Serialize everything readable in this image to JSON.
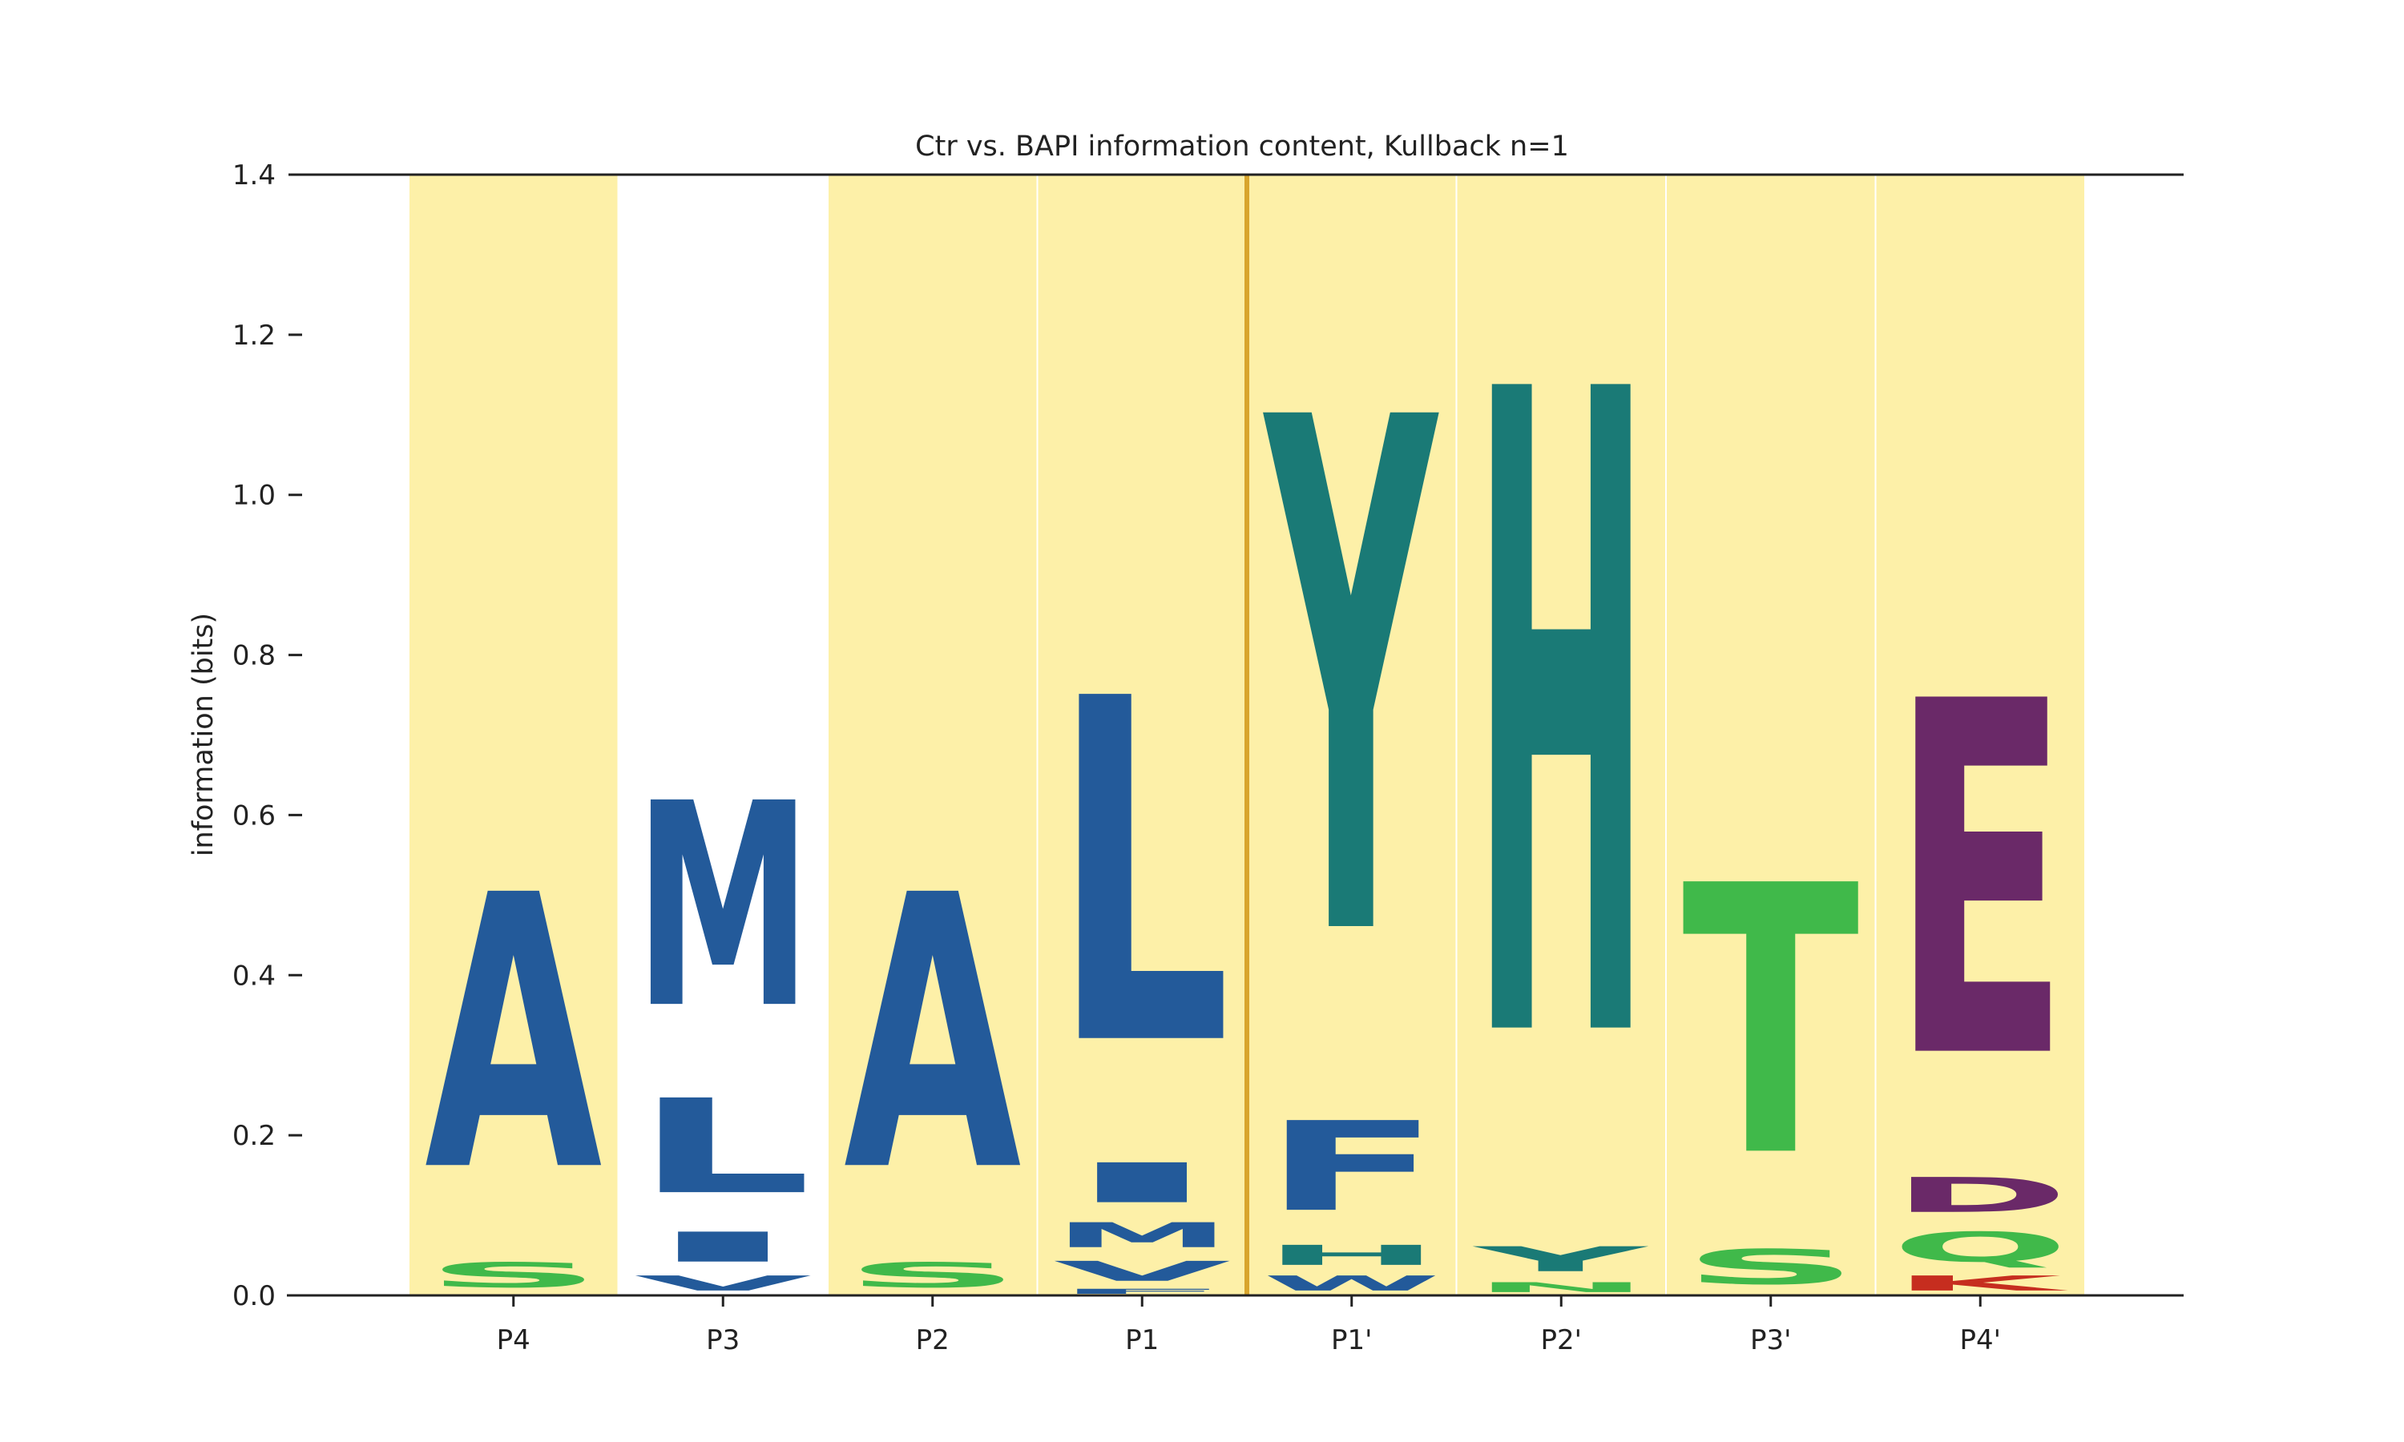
{
  "chart_data": {
    "type": "sequence-logo",
    "title": "Ctr vs. BAPI information content, Kullback n=1",
    "xlabel": "",
    "ylabel": "information (bits)",
    "ylim": [
      0,
      1.4
    ],
    "yticks": [
      0.0,
      0.2,
      0.4,
      0.6,
      0.8,
      1.0,
      1.2,
      1.4
    ],
    "ytick_labels": [
      "0.0",
      "0.2",
      "0.4",
      "0.6",
      "0.8",
      "1.0",
      "1.2",
      "1.4"
    ],
    "categories": [
      "P4",
      "P3",
      "P2",
      "P1",
      "P1'",
      "P2'",
      "P3'",
      "P4'"
    ],
    "highlighted_positions": [
      "P4",
      "P2",
      "P1",
      "P1'",
      "P2'",
      "P3'",
      "P4'"
    ],
    "cleavage_site_between": [
      "P1",
      "P1'"
    ],
    "grid": false,
    "colors": {
      "blue": "#235a9a",
      "teal": "#1a7a76",
      "green": "#40b94a",
      "purple": "#6a2968",
      "red": "#c62d1f",
      "highlight": "#fdf0a8",
      "cleavage_line": "#d8a52d"
    },
    "stacks": [
      {
        "position": "P4",
        "letters": [
          {
            "letter": "S",
            "bits": 0.05,
            "color": "green"
          },
          {
            "letter": "A",
            "bits": 0.55,
            "color": "blue"
          }
        ]
      },
      {
        "position": "P3",
        "letters": [
          {
            "letter": "V",
            "bits": 0.03,
            "color": "blue"
          },
          {
            "letter": "I",
            "bits": 0.06,
            "color": "blue"
          },
          {
            "letter": "L",
            "bits": 0.19,
            "color": "blue"
          },
          {
            "letter": "M",
            "bits": 0.41,
            "color": "blue"
          }
        ]
      },
      {
        "position": "P2",
        "letters": [
          {
            "letter": "S",
            "bits": 0.05,
            "color": "green"
          },
          {
            "letter": "A",
            "bits": 0.55,
            "color": "blue"
          }
        ]
      },
      {
        "position": "P1",
        "letters": [
          {
            "letter": "F",
            "bits": 0.01,
            "color": "blue"
          },
          {
            "letter": "V",
            "bits": 0.04,
            "color": "blue"
          },
          {
            "letter": "M",
            "bits": 0.05,
            "color": "blue"
          },
          {
            "letter": "I",
            "bits": 0.08,
            "color": "blue"
          },
          {
            "letter": "L",
            "bits": 0.69,
            "color": "blue"
          }
        ]
      },
      {
        "position": "P1'",
        "letters": [
          {
            "letter": "W",
            "bits": 0.03,
            "color": "blue"
          },
          {
            "letter": "H",
            "bits": 0.04,
            "color": "teal"
          },
          {
            "letter": "F",
            "bits": 0.18,
            "color": "blue"
          },
          {
            "letter": "Y",
            "bits": 1.03,
            "color": "teal"
          }
        ]
      },
      {
        "position": "P2'",
        "letters": [
          {
            "letter": "N",
            "bits": 0.02,
            "color": "green"
          },
          {
            "letter": "Y",
            "bits": 0.05,
            "color": "teal"
          },
          {
            "letter": "H",
            "bits": 1.29,
            "color": "teal"
          }
        ]
      },
      {
        "position": "P3'",
        "letters": [
          {
            "letter": "S",
            "bits": 0.07,
            "color": "green"
          },
          {
            "letter": "T",
            "bits": 0.54,
            "color": "green"
          }
        ]
      },
      {
        "position": "P4'",
        "letters": [
          {
            "letter": "K",
            "bits": 0.03,
            "color": "red"
          },
          {
            "letter": "Q",
            "bits": 0.06,
            "color": "green"
          },
          {
            "letter": "D",
            "bits": 0.07,
            "color": "purple"
          },
          {
            "letter": "E",
            "bits": 0.71,
            "color": "purple"
          }
        ]
      }
    ]
  }
}
